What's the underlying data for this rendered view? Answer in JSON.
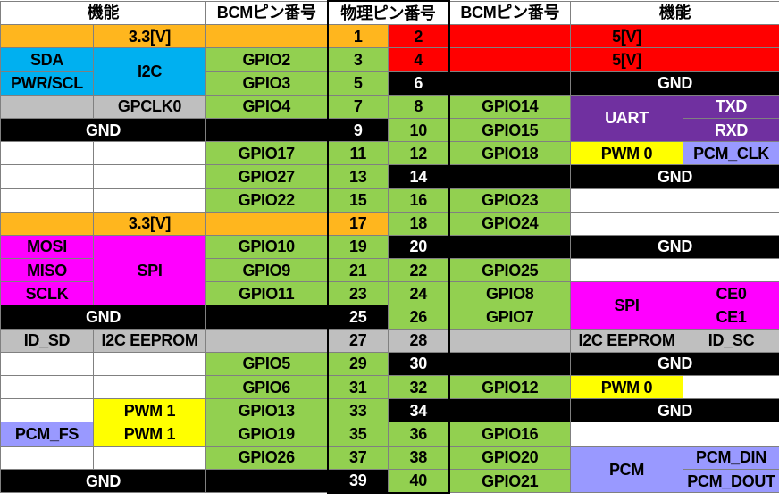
{
  "header": {
    "func_left": "機能",
    "bcm_left": "BCMピン番号",
    "physical": "物理ピン番号",
    "bcm_right": "BCMピン番号",
    "func_right": "機能"
  },
  "cells": {
    "r1": {
      "fl": "3.3[V]",
      "pl": "1",
      "pr": "2",
      "fr": "5[V]"
    },
    "r2": {
      "f1": "SDA",
      "i2c": "I2C",
      "bl": "GPIO2",
      "pl": "3",
      "pr": "4",
      "fr": "5[V]"
    },
    "r3": {
      "f1": "PWR/SCL",
      "bl": "GPIO3",
      "pl": "5",
      "pr": "6",
      "fr": "GND"
    },
    "r4": {
      "f2": "GPCLK0",
      "bl": "GPIO4",
      "pl": "7",
      "pr": "8",
      "br": "GPIO14",
      "uart": "UART",
      "f4": "TXD"
    },
    "r5": {
      "fl": "GND",
      "pl": "9",
      "pr": "10",
      "br": "GPIO15",
      "f4": "RXD"
    },
    "r6": {
      "bl": "GPIO17",
      "pl": "11",
      "pr": "12",
      "br": "GPIO18",
      "f3": "PWM 0",
      "f4": "PCM_CLK"
    },
    "r7": {
      "bl": "GPIO27",
      "pl": "13",
      "pr": "14",
      "fr": "GND"
    },
    "r8": {
      "bl": "GPIO22",
      "pl": "15",
      "pr": "16",
      "br": "GPIO23"
    },
    "r9": {
      "fl": "3.3[V]",
      "pl": "17",
      "pr": "18",
      "br": "GPIO24"
    },
    "r10": {
      "f1": "MOSI",
      "spi": "SPI",
      "bl": "GPIO10",
      "pl": "19",
      "pr": "20",
      "fr": "GND"
    },
    "r11": {
      "f1": "MISO",
      "bl": "GPIO9",
      "pl": "21",
      "pr": "22",
      "br": "GPIO25"
    },
    "r12": {
      "f1": "SCLK",
      "bl": "GPIO11",
      "pl": "23",
      "pr": "24",
      "br": "GPIO8",
      "spi": "SPI",
      "f4": "CE0"
    },
    "r13": {
      "fl": "GND",
      "pl": "25",
      "pr": "26",
      "br": "GPIO7",
      "f4": "CE1"
    },
    "r14": {
      "f1": "ID_SD",
      "f2": "I2C EEPROM",
      "pl": "27",
      "pr": "28",
      "f3": "I2C EEPROM",
      "f4": "ID_SC"
    },
    "r15": {
      "bl": "GPIO5",
      "pl": "29",
      "pr": "30",
      "fr": "GND"
    },
    "r16": {
      "bl": "GPIO6",
      "pl": "31",
      "pr": "32",
      "br": "GPIO12",
      "f3": "PWM 0"
    },
    "r17": {
      "f2": "PWM 1",
      "bl": "GPIO13",
      "pl": "33",
      "pr": "34",
      "fr": "GND"
    },
    "r18": {
      "f1": "PCM_FS",
      "f2": "PWM 1",
      "bl": "GPIO19",
      "pl": "35",
      "pr": "36",
      "br": "GPIO16"
    },
    "r19": {
      "bl": "GPIO26",
      "pl": "37",
      "pr": "38",
      "br": "GPIO20",
      "pcm": "PCM",
      "f4": "PCM_DIN"
    },
    "r20": {
      "fl": "GND",
      "pl": "39",
      "pr": "40",
      "br": "GPIO21",
      "f4": "PCM_DOUT"
    }
  },
  "colors": {
    "power_3v3": "#FFB61E",
    "power_5v": "#FF0000",
    "i2c": "#00B0F0",
    "gpio": "#92D050",
    "reserved": "#BFBFBF",
    "ground": "#000000",
    "pwm": "#FFFF00",
    "uart": "#7030A0",
    "spi": "#FF00FF",
    "pcm": "#9999FF"
  }
}
